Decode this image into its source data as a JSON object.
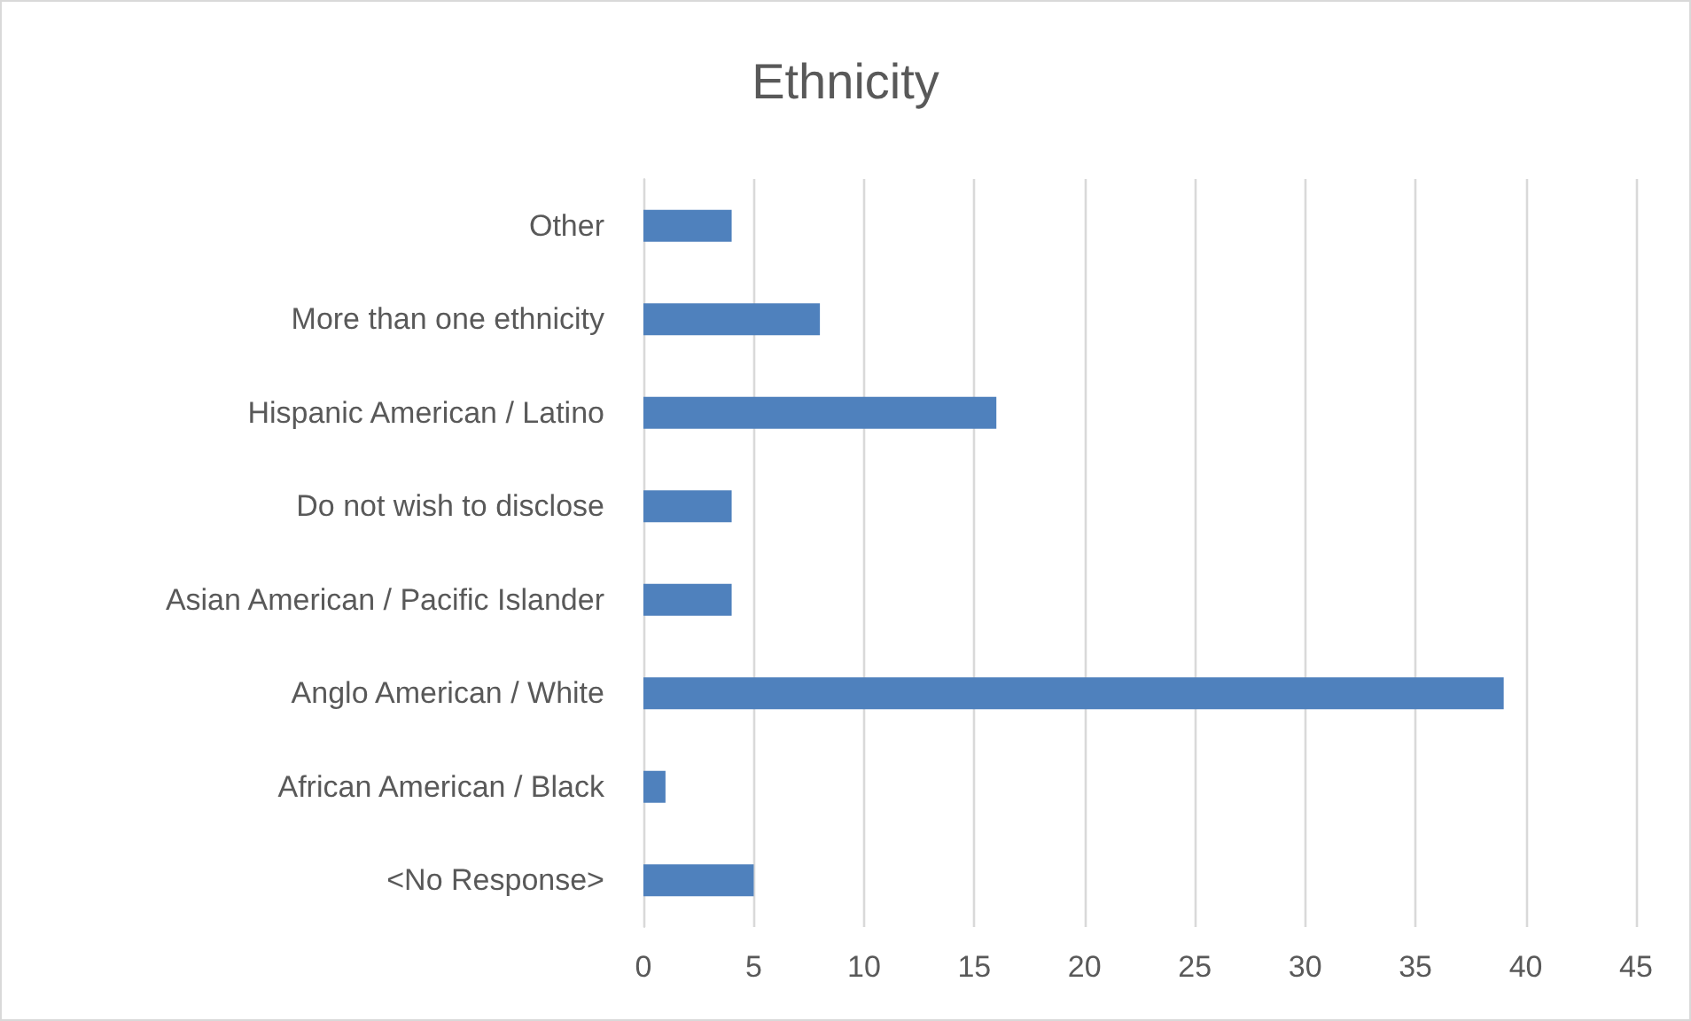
{
  "chart_data": {
    "type": "bar",
    "orientation": "horizontal",
    "title": "Ethnicity",
    "categories": [
      "Other",
      "More than one ethnicity",
      "Hispanic American / Latino",
      "Do not wish to disclose",
      "Asian American / Pacific Islander",
      "Anglo American / White",
      "African American / Black",
      "<No Response>"
    ],
    "values": [
      4,
      8,
      16,
      4,
      4,
      39,
      1,
      5
    ],
    "color": "#4f81bd",
    "xlim": [
      0,
      45
    ],
    "xticks": [
      0,
      5,
      10,
      15,
      20,
      25,
      30,
      35,
      40,
      45
    ],
    "grid": "x"
  }
}
